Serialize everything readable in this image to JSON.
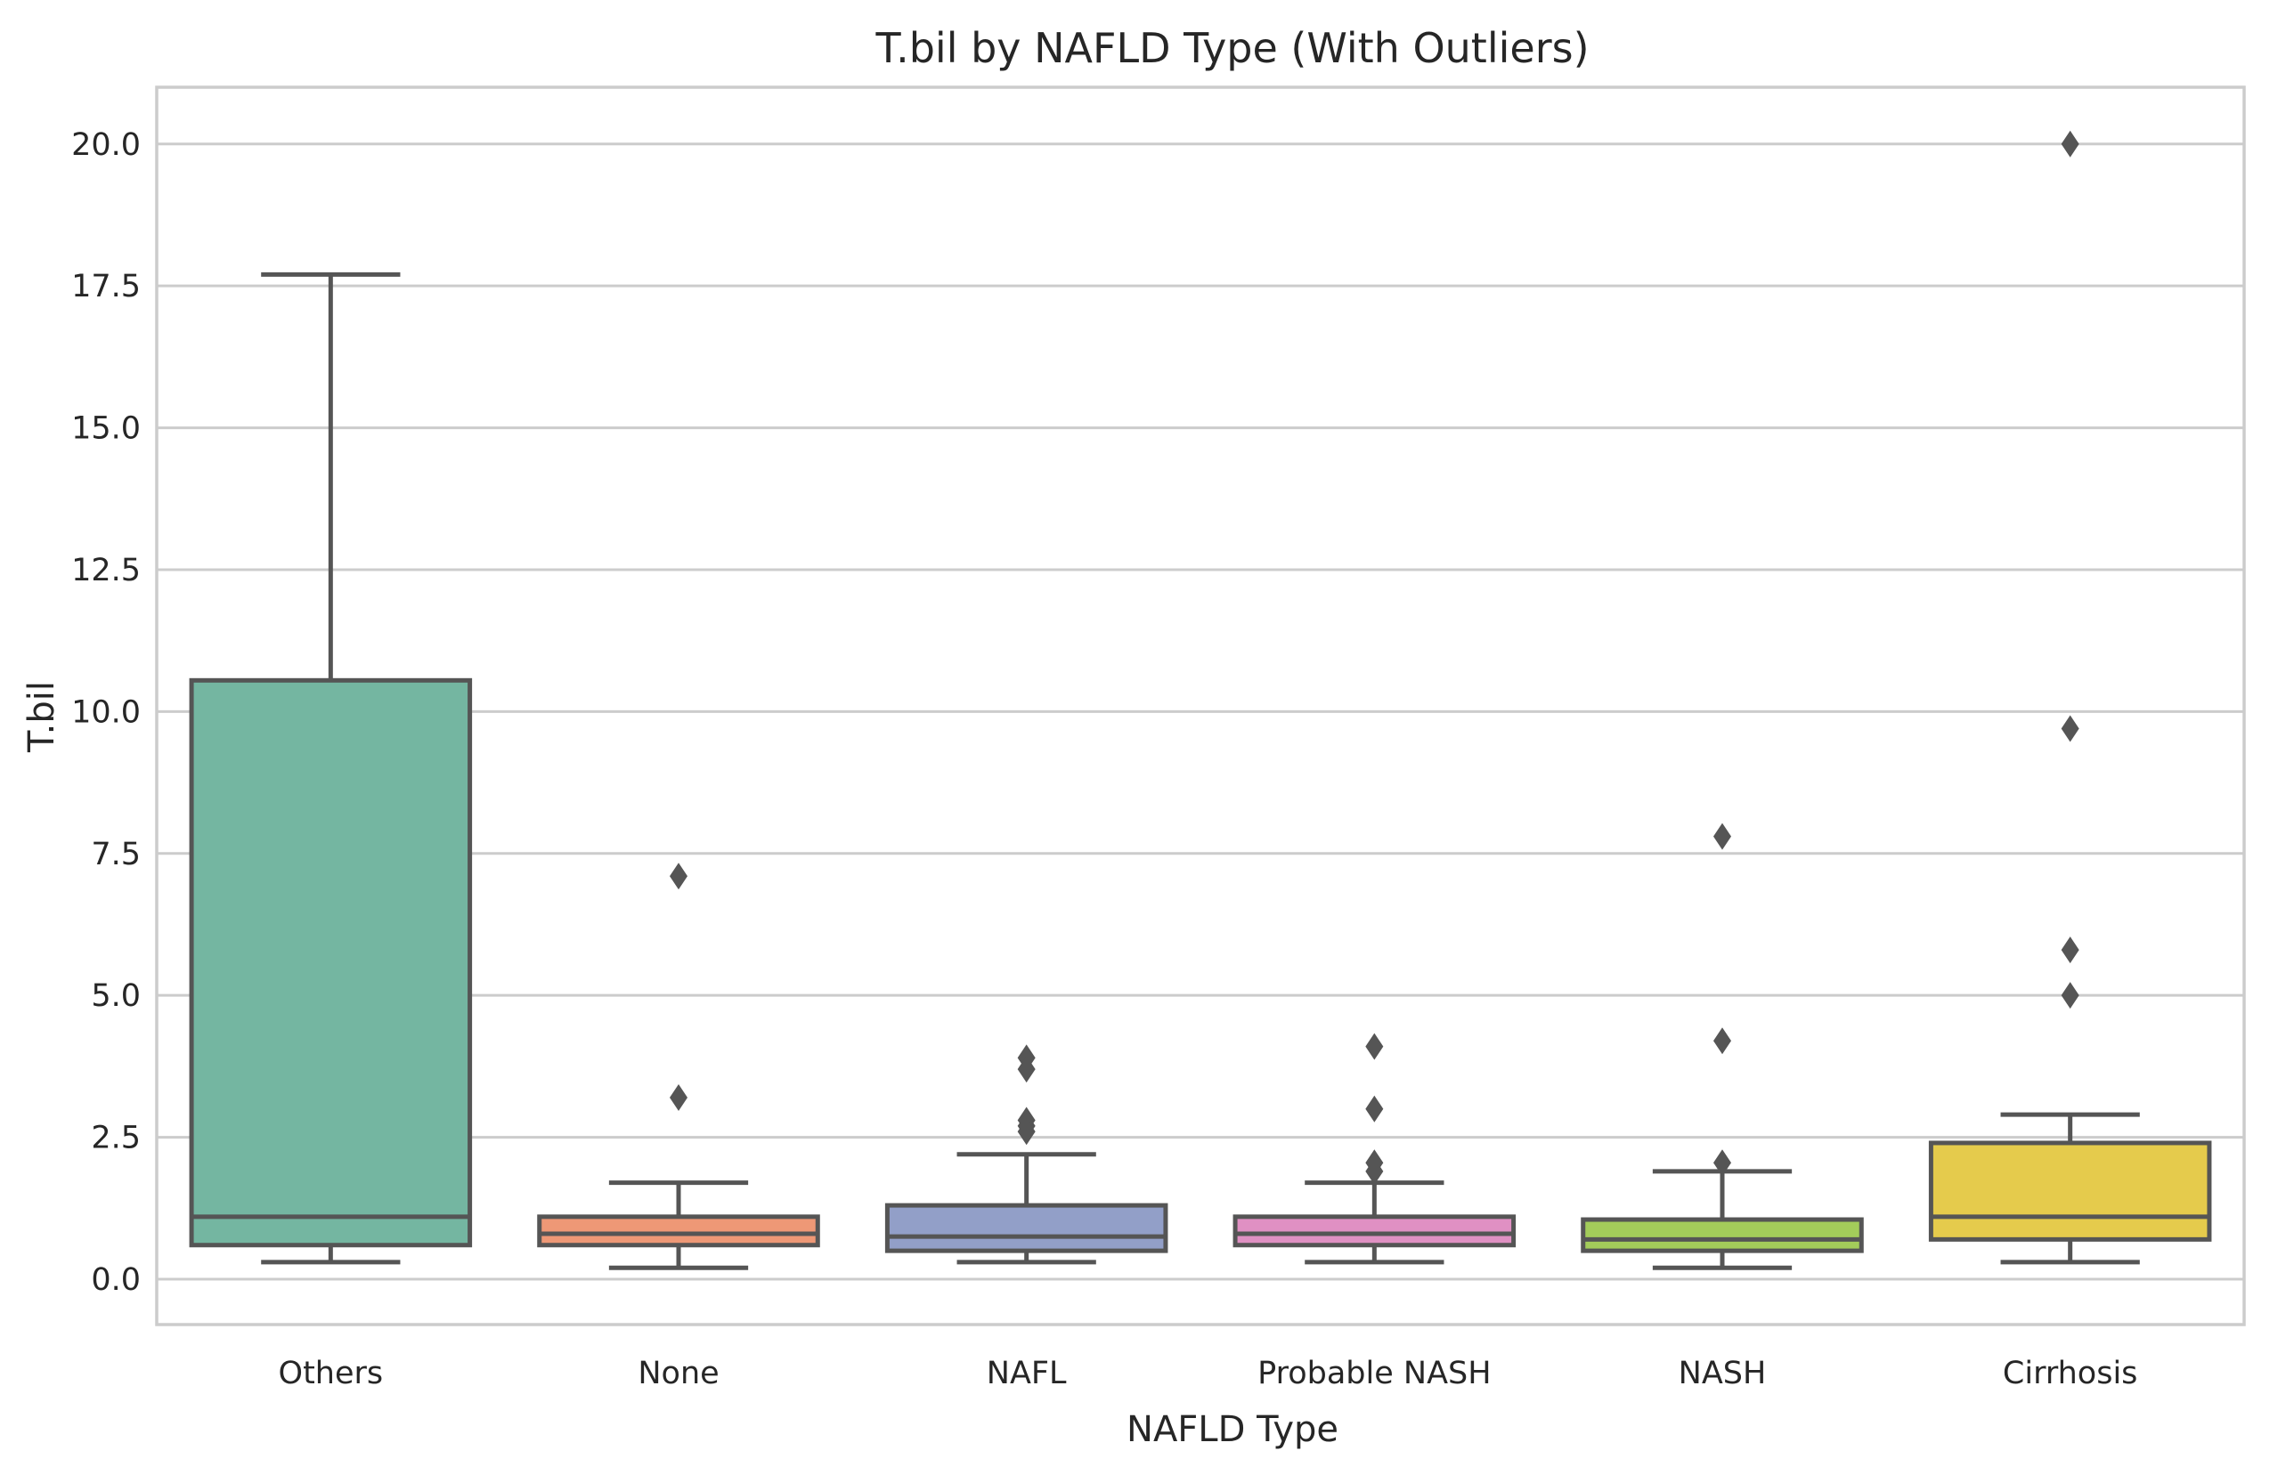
{
  "chart_data": {
    "type": "box",
    "title": "T.bil by NAFLD Type (With Outliers)",
    "xlabel": "NAFLD Type",
    "ylabel": "T.bil",
    "ylim": [
      -0.8,
      21.0
    ],
    "yticks": [
      0.0,
      2.5,
      5.0,
      7.5,
      10.0,
      12.5,
      15.0,
      17.5,
      20.0
    ],
    "ytick_labels": [
      "0.0",
      "2.5",
      "5.0",
      "7.5",
      "10.0",
      "12.5",
      "15.0",
      "17.5",
      "20.0"
    ],
    "grid": "horizontal",
    "categories": [
      "Others",
      "None",
      "NAFL",
      "Probable NASH",
      "NASH",
      "Cirrhosis"
    ],
    "boxes": [
      {
        "category": "Others",
        "whisker_low": 0.3,
        "q1": 0.6,
        "median": 1.1,
        "q3": 10.55,
        "whisker_high": 17.7,
        "outliers": [],
        "color": "#74b6a1"
      },
      {
        "category": "None",
        "whisker_low": 0.2,
        "q1": 0.6,
        "median": 0.8,
        "q3": 1.1,
        "whisker_high": 1.7,
        "outliers": [
          7.1,
          3.2
        ],
        "color": "#ee9876"
      },
      {
        "category": "NAFL",
        "whisker_low": 0.3,
        "q1": 0.5,
        "median": 0.75,
        "q3": 1.3,
        "whisker_high": 2.2,
        "outliers": [
          3.9,
          3.7,
          2.8,
          2.7,
          2.6
        ],
        "color": "#929fc8"
      },
      {
        "category": "Probable NASH",
        "whisker_low": 0.3,
        "q1": 0.6,
        "median": 0.8,
        "q3": 1.1,
        "whisker_high": 1.7,
        "outliers": [
          4.1,
          3.0,
          2.05,
          1.9
        ],
        "color": "#e090c3"
      },
      {
        "category": "NASH",
        "whisker_low": 0.2,
        "q1": 0.5,
        "median": 0.7,
        "q3": 1.05,
        "whisker_high": 1.9,
        "outliers": [
          7.8,
          4.2,
          2.05
        ],
        "color": "#a3cc5a"
      },
      {
        "category": "Cirrhosis",
        "whisker_low": 0.3,
        "q1": 0.7,
        "median": 1.1,
        "q3": 2.4,
        "whisker_high": 2.9,
        "outliers": [
          20.0,
          9.7,
          5.8,
          5.0
        ],
        "color": "#e5cb4c"
      }
    ]
  }
}
